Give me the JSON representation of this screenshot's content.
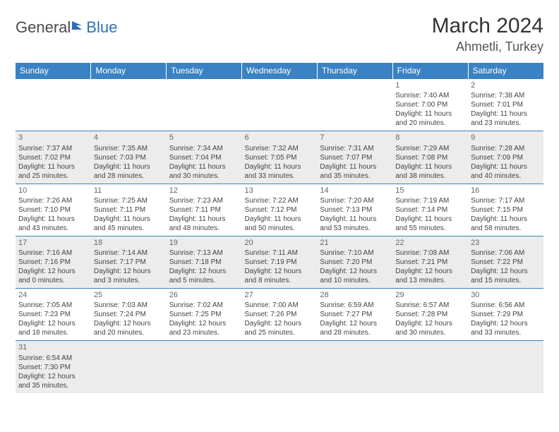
{
  "logo": {
    "text1": "General",
    "text2": "Blue"
  },
  "title": "March 2024",
  "location": "Ahmetli, Turkey",
  "colors": {
    "header_bg": "#3a82c4",
    "shaded_bg": "#ececec",
    "border": "#3a82c4"
  },
  "weekdays": [
    "Sunday",
    "Monday",
    "Tuesday",
    "Wednesday",
    "Thursday",
    "Friday",
    "Saturday"
  ],
  "weeks": [
    [
      null,
      null,
      null,
      null,
      null,
      {
        "n": "1",
        "sr": "Sunrise: 7:40 AM",
        "ss": "Sunset: 7:00 PM",
        "d1": "Daylight: 11 hours",
        "d2": "and 20 minutes."
      },
      {
        "n": "2",
        "sr": "Sunrise: 7:38 AM",
        "ss": "Sunset: 7:01 PM",
        "d1": "Daylight: 11 hours",
        "d2": "and 23 minutes."
      }
    ],
    [
      {
        "n": "3",
        "sr": "Sunrise: 7:37 AM",
        "ss": "Sunset: 7:02 PM",
        "d1": "Daylight: 11 hours",
        "d2": "and 25 minutes."
      },
      {
        "n": "4",
        "sr": "Sunrise: 7:35 AM",
        "ss": "Sunset: 7:03 PM",
        "d1": "Daylight: 11 hours",
        "d2": "and 28 minutes."
      },
      {
        "n": "5",
        "sr": "Sunrise: 7:34 AM",
        "ss": "Sunset: 7:04 PM",
        "d1": "Daylight: 11 hours",
        "d2": "and 30 minutes."
      },
      {
        "n": "6",
        "sr": "Sunrise: 7:32 AM",
        "ss": "Sunset: 7:05 PM",
        "d1": "Daylight: 11 hours",
        "d2": "and 33 minutes."
      },
      {
        "n": "7",
        "sr": "Sunrise: 7:31 AM",
        "ss": "Sunset: 7:07 PM",
        "d1": "Daylight: 11 hours",
        "d2": "and 35 minutes."
      },
      {
        "n": "8",
        "sr": "Sunrise: 7:29 AM",
        "ss": "Sunset: 7:08 PM",
        "d1": "Daylight: 11 hours",
        "d2": "and 38 minutes."
      },
      {
        "n": "9",
        "sr": "Sunrise: 7:28 AM",
        "ss": "Sunset: 7:09 PM",
        "d1": "Daylight: 11 hours",
        "d2": "and 40 minutes."
      }
    ],
    [
      {
        "n": "10",
        "sr": "Sunrise: 7:26 AM",
        "ss": "Sunset: 7:10 PM",
        "d1": "Daylight: 11 hours",
        "d2": "and 43 minutes."
      },
      {
        "n": "11",
        "sr": "Sunrise: 7:25 AM",
        "ss": "Sunset: 7:11 PM",
        "d1": "Daylight: 11 hours",
        "d2": "and 45 minutes."
      },
      {
        "n": "12",
        "sr": "Sunrise: 7:23 AM",
        "ss": "Sunset: 7:11 PM",
        "d1": "Daylight: 11 hours",
        "d2": "and 48 minutes."
      },
      {
        "n": "13",
        "sr": "Sunrise: 7:22 AM",
        "ss": "Sunset: 7:12 PM",
        "d1": "Daylight: 11 hours",
        "d2": "and 50 minutes."
      },
      {
        "n": "14",
        "sr": "Sunrise: 7:20 AM",
        "ss": "Sunset: 7:13 PM",
        "d1": "Daylight: 11 hours",
        "d2": "and 53 minutes."
      },
      {
        "n": "15",
        "sr": "Sunrise: 7:19 AM",
        "ss": "Sunset: 7:14 PM",
        "d1": "Daylight: 11 hours",
        "d2": "and 55 minutes."
      },
      {
        "n": "16",
        "sr": "Sunrise: 7:17 AM",
        "ss": "Sunset: 7:15 PM",
        "d1": "Daylight: 11 hours",
        "d2": "and 58 minutes."
      }
    ],
    [
      {
        "n": "17",
        "sr": "Sunrise: 7:16 AM",
        "ss": "Sunset: 7:16 PM",
        "d1": "Daylight: 12 hours",
        "d2": "and 0 minutes."
      },
      {
        "n": "18",
        "sr": "Sunrise: 7:14 AM",
        "ss": "Sunset: 7:17 PM",
        "d1": "Daylight: 12 hours",
        "d2": "and 3 minutes."
      },
      {
        "n": "19",
        "sr": "Sunrise: 7:13 AM",
        "ss": "Sunset: 7:18 PM",
        "d1": "Daylight: 12 hours",
        "d2": "and 5 minutes."
      },
      {
        "n": "20",
        "sr": "Sunrise: 7:11 AM",
        "ss": "Sunset: 7:19 PM",
        "d1": "Daylight: 12 hours",
        "d2": "and 8 minutes."
      },
      {
        "n": "21",
        "sr": "Sunrise: 7:10 AM",
        "ss": "Sunset: 7:20 PM",
        "d1": "Daylight: 12 hours",
        "d2": "and 10 minutes."
      },
      {
        "n": "22",
        "sr": "Sunrise: 7:08 AM",
        "ss": "Sunset: 7:21 PM",
        "d1": "Daylight: 12 hours",
        "d2": "and 13 minutes."
      },
      {
        "n": "23",
        "sr": "Sunrise: 7:06 AM",
        "ss": "Sunset: 7:22 PM",
        "d1": "Daylight: 12 hours",
        "d2": "and 15 minutes."
      }
    ],
    [
      {
        "n": "24",
        "sr": "Sunrise: 7:05 AM",
        "ss": "Sunset: 7:23 PM",
        "d1": "Daylight: 12 hours",
        "d2": "and 18 minutes."
      },
      {
        "n": "25",
        "sr": "Sunrise: 7:03 AM",
        "ss": "Sunset: 7:24 PM",
        "d1": "Daylight: 12 hours",
        "d2": "and 20 minutes."
      },
      {
        "n": "26",
        "sr": "Sunrise: 7:02 AM",
        "ss": "Sunset: 7:25 PM",
        "d1": "Daylight: 12 hours",
        "d2": "and 23 minutes."
      },
      {
        "n": "27",
        "sr": "Sunrise: 7:00 AM",
        "ss": "Sunset: 7:26 PM",
        "d1": "Daylight: 12 hours",
        "d2": "and 25 minutes."
      },
      {
        "n": "28",
        "sr": "Sunrise: 6:59 AM",
        "ss": "Sunset: 7:27 PM",
        "d1": "Daylight: 12 hours",
        "d2": "and 28 minutes."
      },
      {
        "n": "29",
        "sr": "Sunrise: 6:57 AM",
        "ss": "Sunset: 7:28 PM",
        "d1": "Daylight: 12 hours",
        "d2": "and 30 minutes."
      },
      {
        "n": "30",
        "sr": "Sunrise: 6:56 AM",
        "ss": "Sunset: 7:29 PM",
        "d1": "Daylight: 12 hours",
        "d2": "and 33 minutes."
      }
    ],
    [
      {
        "n": "31",
        "sr": "Sunrise: 6:54 AM",
        "ss": "Sunset: 7:30 PM",
        "d1": "Daylight: 12 hours",
        "d2": "and 35 minutes."
      },
      null,
      null,
      null,
      null,
      null,
      null
    ]
  ]
}
